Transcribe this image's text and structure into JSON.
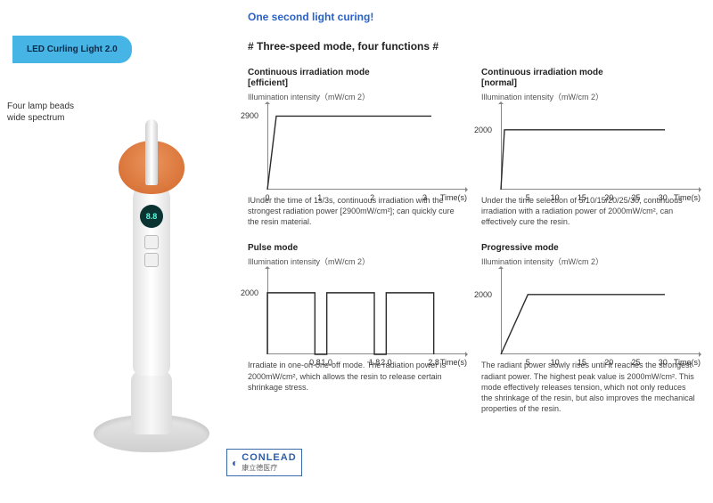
{
  "badge": {
    "label": "LED Curling Light 2.0",
    "bg": "#46b4e4"
  },
  "side_note": {
    "line1": "Four lamp beads",
    "line2": "wide spectrum"
  },
  "tagline": "One second light curing!",
  "section_title": "# Three-speed mode, four functions #",
  "ylabel_text": "Illumination intensity（mW/cm 2）",
  "xlabel_text": "Time(s)",
  "charts": {
    "c1": {
      "title_line1": "Continuous irradiation mode",
      "title_line2": "[efficient]",
      "ytick": "2900",
      "xticks": [
        "0",
        "1",
        "2",
        "3"
      ],
      "desc": "IUnder the time of 1s/3s, continuous irradiation with the strongest radiation power [2900mW/cm²]; can quickly cure the resin material.",
      "y_level": 0.86,
      "x_rise": 0.05,
      "xlim": [
        0,
        3.4
      ]
    },
    "c2": {
      "title_line1": "Continuous irradiation mode",
      "title_line2": "[normal]",
      "ytick": "2000",
      "xticks": [
        "5",
        "10",
        "15",
        "20",
        "25",
        "30"
      ],
      "desc": "Under the time selection of 5/10/15/20/25/30, continuous irradiation with a radiation power of 2000mW/cm², can effectively cure the resin.",
      "y_level": 0.7,
      "x_rise": 0.02,
      "xlim": [
        0,
        33
      ]
    },
    "c3": {
      "title_line1": "Pulse mode",
      "title_line2": "",
      "ytick": "2000",
      "xticks": [
        "0.8",
        "1.0",
        "1.8",
        "2.0",
        "2.8"
      ],
      "desc": "Irradiate in one-on-one-off mode. The radiation power is 2000mW/cm², which allows the resin to release certain shrinkage stress.",
      "y_level": 0.72,
      "pulses": [
        [
          0,
          0.8
        ],
        [
          1.0,
          1.8
        ],
        [
          2.0,
          2.8
        ]
      ],
      "xlim": [
        0,
        3.0
      ]
    },
    "c4": {
      "title_line1": "Progressive mode",
      "title_line2": "",
      "ytick": "2000",
      "xticks": [
        "5",
        "10",
        "15",
        "20",
        "25",
        "30"
      ],
      "desc": "The radiant power slowly rises until it reaches the strongest radiant power. The highest peak value is 2000mW/cm². This mode effectively releases tension, which not only reduces the shrinkage of the resin, but also improves the mechanical properties of the resin.",
      "y_level": 0.7,
      "ramp_end": 5,
      "xlim": [
        0,
        33
      ]
    }
  },
  "logo": {
    "name": "CONLEAD",
    "cn": "康立德医疗"
  },
  "colors": {
    "axis": "#888888",
    "line": "#2b2b2b",
    "accent": "#2a62c7"
  }
}
